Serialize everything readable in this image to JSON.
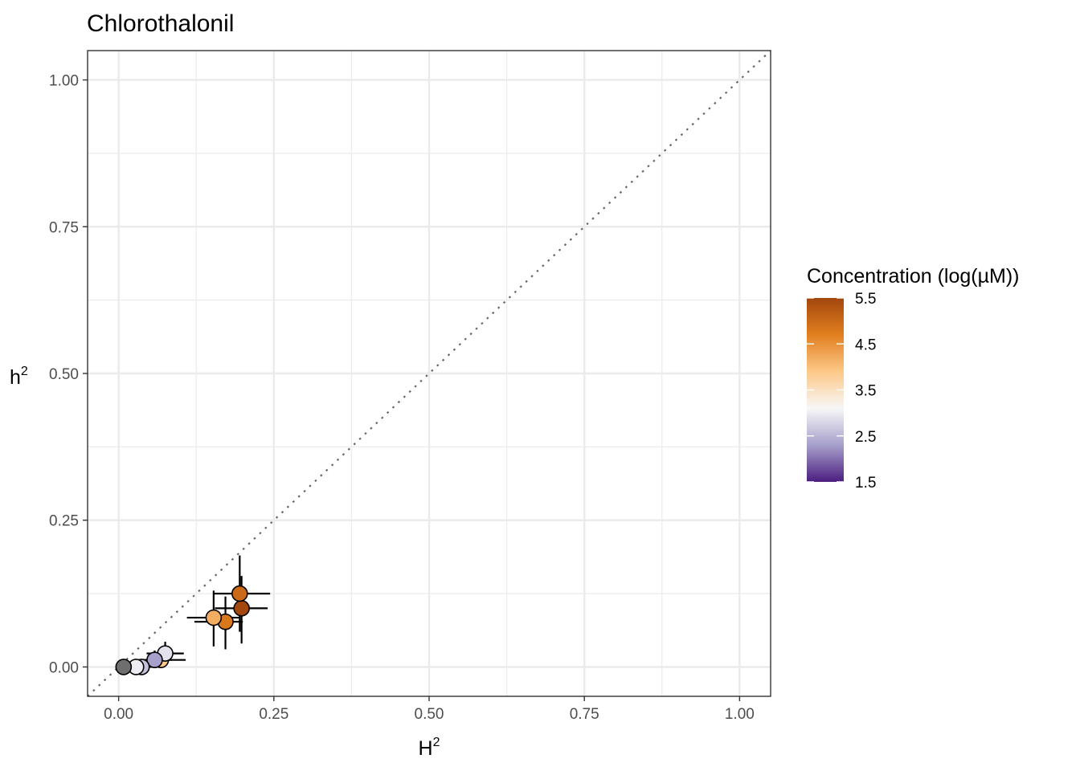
{
  "chart_data": {
    "type": "scatter",
    "title": "Chlorothalonil",
    "xlabel": "H",
    "xlabel_sup": "2",
    "ylabel": "h",
    "ylabel_sup": "2",
    "xlim": [
      -0.05,
      1.05
    ],
    "ylim": [
      -0.05,
      1.05
    ],
    "x_ticks": [
      0,
      0.25,
      0.5,
      0.75,
      1
    ],
    "x_tick_labels": [
      "0.00",
      "0.25",
      "0.50",
      "0.75",
      "1.00"
    ],
    "y_ticks": [
      0,
      0.25,
      0.5,
      0.75,
      1
    ],
    "y_tick_labels": [
      "0.00",
      "0.25",
      "0.50",
      "0.75",
      "1.00"
    ],
    "grid": true,
    "reference_line": "y = x (dotted)",
    "points": [
      {
        "x": 0.198,
        "y": 0.1,
        "xerr": [
          0.155,
          0.24
        ],
        "yerr": [
          0.04,
          0.155
        ],
        "conc": 5.5
      },
      {
        "x": 0.195,
        "y": 0.125,
        "xerr": [
          0.152,
          0.244
        ],
        "yerr": [
          0.06,
          0.19
        ],
        "conc": 5.0
      },
      {
        "x": 0.172,
        "y": 0.077,
        "xerr": [
          0.122,
          0.2
        ],
        "yerr": [
          0.03,
          0.12
        ],
        "conc": 4.8
      },
      {
        "x": 0.153,
        "y": 0.084,
        "xerr": [
          0.11,
          0.195
        ],
        "yerr": [
          0.035,
          0.13
        ],
        "conc": 4.2
      },
      {
        "x": 0.068,
        "y": 0.012,
        "xerr": [
          0.042,
          0.108
        ],
        "yerr": [
          0.0,
          0.03
        ],
        "conc": 3.9
      },
      {
        "x": 0.075,
        "y": 0.023,
        "xerr": [
          0.045,
          0.105
        ],
        "yerr": [
          0.005,
          0.043
        ],
        "conc": 2.9
      },
      {
        "x": 0.058,
        "y": 0.012,
        "xerr": [
          0.035,
          0.085
        ],
        "yerr": [
          0.0,
          0.028
        ],
        "conc": 2.3
      },
      {
        "x": 0.037,
        "y": 0.0,
        "xerr": [
          0.02,
          0.055
        ],
        "yerr": [
          0.0,
          0.01
        ],
        "conc": 2.6
      },
      {
        "x": 0.028,
        "y": 0.0,
        "xerr": [
          0.015,
          0.045
        ],
        "yerr": [
          0.0,
          0.008
        ],
        "conc": 3.0
      },
      {
        "x": 0.008,
        "y": 0.0,
        "xerr": [
          0.0,
          0.02
        ],
        "yerr": [
          0.0,
          0.005
        ],
        "conc": null
      }
    ],
    "legend": {
      "title": "Concentration (log(µM))",
      "position": "right",
      "min": 1.5,
      "max": 5.5,
      "ticks": [
        5.5,
        4.5,
        3.5,
        2.5,
        1.5
      ],
      "tick_labels": [
        "5.5",
        "4.5",
        "3.5",
        "2.5",
        "1.5"
      ],
      "colors_low_to_high": [
        "#4b1d7f",
        "#a6a0cb",
        "#f7f7f7",
        "#fdc888",
        "#e27f1f",
        "#a2470d"
      ],
      "na_color": "#6e6e6e"
    }
  }
}
